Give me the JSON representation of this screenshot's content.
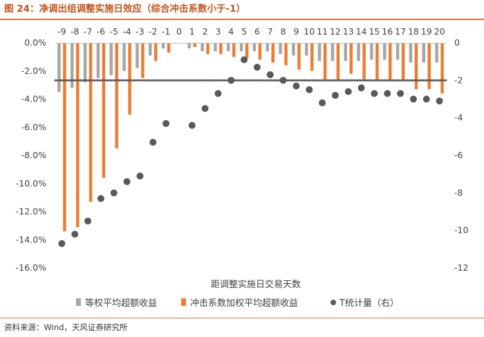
{
  "header": {
    "title": "图 24：净调出组调整实施日效应（综合冲击系数小于-1）"
  },
  "footer": {
    "source": "资料来源：Wind，天风证券研究所"
  },
  "colors": {
    "title": "#c2541c",
    "rule": "#d9702e",
    "equal": "#a6a6a6",
    "weighted": "#ed7d31",
    "tstat": "#595959",
    "ref_line": "#595959"
  },
  "chart_data": {
    "type": "bar",
    "title": "净调出组调整实施日效应（综合冲击系数小于-1）",
    "xlabel": "距调整实施日交易天数",
    "ylabel": "",
    "categories": [
      "-9",
      "-8",
      "-7",
      "-6",
      "-5",
      "-4",
      "-3",
      "-2",
      "-1",
      "0",
      "1",
      "2",
      "3",
      "4",
      "5",
      "6",
      "7",
      "8",
      "9",
      "10",
      "11",
      "12",
      "13",
      "14",
      "15",
      "16",
      "17",
      "18",
      "19",
      "20"
    ],
    "ylim": [
      -16.0,
      0.0
    ],
    "y_ticks": [
      "0.0%",
      "-2.0%",
      "-4.0%",
      "-6.0%",
      "-8.0%",
      "-10.0%",
      "-12.0%",
      "-14.0%",
      "-16.0%"
    ],
    "y2lim": [
      -12,
      0
    ],
    "y2_ticks": [
      "0",
      "-2",
      "-4",
      "-6",
      "-8",
      "-10",
      "-12"
    ],
    "reference_line": {
      "axis": "right",
      "value": -2.0,
      "style": "dotted"
    },
    "series": [
      {
        "name": "等权平均超额收益",
        "kind": "bar",
        "axis": "left",
        "values": [
          -3.5,
          -3.2,
          -2.8,
          -2.5,
          -2.3,
          -2.0,
          -1.8,
          -0.9,
          -0.4,
          0.0,
          -0.4,
          -0.6,
          -0.6,
          -0.6,
          -0.6,
          -0.6,
          -0.6,
          -0.8,
          -0.9,
          -0.9,
          -1.3,
          -1.3,
          -1.3,
          -1.3,
          -1.2,
          -1.2,
          -1.2,
          -1.4,
          -1.4,
          -1.4
        ]
      },
      {
        "name": "冲击系数加权平均超额收益",
        "kind": "bar",
        "axis": "left",
        "values": [
          -13.4,
          -13.1,
          -11.3,
          -9.6,
          -7.5,
          -5.1,
          -2.5,
          -1.3,
          -0.7,
          0.0,
          -0.3,
          -0.8,
          -0.8,
          -1.0,
          -1.1,
          -1.2,
          -1.4,
          -1.6,
          -1.9,
          -2.0,
          -2.6,
          -2.6,
          -2.2,
          -2.6,
          -2.6,
          -2.6,
          -2.6,
          -3.3,
          -3.3,
          -3.6
        ]
      },
      {
        "name": "T统计量（右）",
        "kind": "scatter",
        "axis": "right",
        "values": [
          -10.7,
          -10.2,
          -9.5,
          -8.3,
          -8.0,
          -7.4,
          -7.1,
          -5.3,
          -4.3,
          null,
          -4.4,
          -3.5,
          -2.7,
          -2.0,
          -0.9,
          -1.3,
          -1.7,
          -2.0,
          -2.3,
          -2.5,
          -3.2,
          -2.8,
          -2.6,
          -2.4,
          -2.7,
          -2.7,
          -2.7,
          -3.0,
          -3.0,
          -3.1
        ]
      }
    ],
    "legend": {
      "position": "bottom",
      "entries": [
        "等权平均超额收益",
        "冲击系数加权平均超额收益",
        "T统计量（右）"
      ]
    }
  }
}
